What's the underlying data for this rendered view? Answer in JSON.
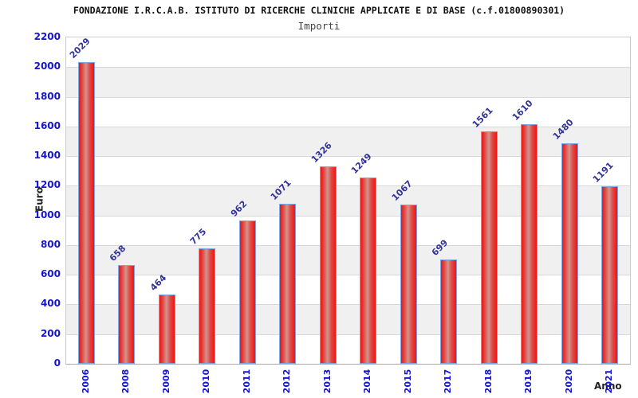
{
  "chart_data": {
    "type": "bar",
    "title": "FONDAZIONE I.R.C.A.B. ISTITUTO DI RICERCHE CLINICHE APPLICATE E DI BASE (c.f.01800890301)",
    "subtitle": "Importi",
    "xlabel": "Anno",
    "ylabel": "Euro",
    "categories": [
      "2006",
      "2008",
      "2009",
      "2010",
      "2011",
      "2012",
      "2013",
      "2014",
      "2015",
      "2017",
      "2018",
      "2019",
      "2020",
      "2021"
    ],
    "values": [
      2029,
      658,
      464,
      775,
      962,
      1071,
      1326,
      1249,
      1067,
      699,
      1561,
      1610,
      1480,
      1191
    ],
    "ylim": [
      0,
      2200
    ],
    "ytick_step": 200,
    "grid": true,
    "legend": "none",
    "colors": {
      "bar_main": "#ed1515",
      "bar_highlight": "#d09490",
      "bar_edge": "#7aa7e8",
      "band": "#f0f0f0",
      "grid": "#d8d8d8",
      "tick_label": "#1515cc",
      "value_label": "#333399",
      "title": "#111111",
      "subtitle": "#444444",
      "axis_label": "#222222"
    }
  }
}
